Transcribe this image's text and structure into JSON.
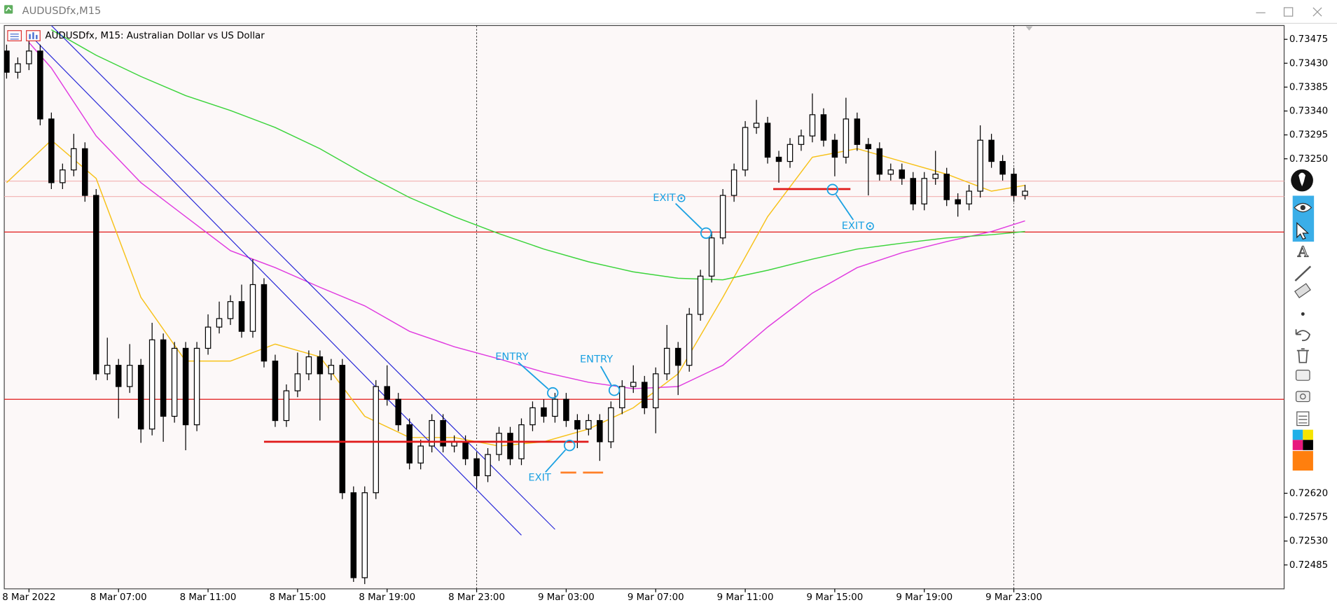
{
  "window": {
    "title": "AUDUSDfx,M15"
  },
  "chart_data": {
    "type": "candlestick",
    "title": "AUDUSDfx, M15:  Australian Dollar vs US Dollar",
    "categories": [
      null,
      null,
      "8 Mar 2022",
      null,
      null,
      null,
      null,
      null,
      null,
      null,
      "8 Mar 07:00",
      null,
      null,
      null,
      null,
      null,
      null,
      null,
      "8 Mar 11:00",
      null,
      null,
      null,
      null,
      null,
      null,
      null,
      "8 Mar 15:00",
      null,
      null,
      null,
      null,
      null,
      null,
      null,
      "8 Mar 19:00",
      null,
      null,
      null,
      null,
      null,
      null,
      null,
      "8 Mar 23:00",
      null,
      null,
      null,
      null,
      null,
      null,
      null,
      "9 Mar 03:00",
      null,
      null,
      null,
      null,
      null,
      null,
      null,
      "9 Mar 07:00",
      null,
      null,
      null,
      null,
      null,
      null,
      null,
      "9 Mar 11:00",
      null,
      null,
      null,
      null,
      null,
      null,
      null,
      "9 Mar 15:00",
      null,
      null,
      null,
      null,
      null,
      null,
      null,
      "9 Mar 19:00",
      null,
      null,
      null,
      null,
      null,
      null,
      null,
      "9 Mar 23:00",
      null
    ],
    "open": [
      0.73453,
      0.73413,
      0.73429,
      0.73453,
      0.73325,
      0.73205,
      0.73229,
      0.73269,
      0.73181,
      0.72845,
      0.72861,
      0.72821,
      0.72861,
      0.72741,
      0.72909,
      0.72765,
      0.72893,
      0.72749,
      0.72893,
      0.72933,
      0.72949,
      0.72981,
      0.72925,
      0.73013,
      0.72869,
      0.72757,
      0.72813,
      0.72845,
      0.72877,
      0.72845,
      0.72861,
      0.72621,
      0.72461,
      0.72621,
      0.72821,
      0.72797,
      0.72749,
      0.72677,
      0.72709,
      0.72757,
      0.72709,
      0.72717,
      0.72685,
      0.72653,
      0.72693,
      0.72733,
      0.72685,
      0.72749,
      0.72781,
      0.72765,
      0.72797,
      0.72757,
      0.72741,
      0.72757,
      0.72717,
      0.72781,
      0.72821,
      0.72829,
      0.72781,
      0.72845,
      0.72893,
      0.72861,
      0.72957,
      0.73029,
      0.73101,
      0.73181,
      0.73229,
      0.73309,
      0.73317,
      0.73253,
      0.73245,
      0.73277,
      0.73293,
      0.73333,
      0.73285,
      0.73253,
      0.73325,
      0.73277,
      0.73269,
      0.73221,
      0.73229,
      0.73213,
      0.73165,
      0.73213,
      0.73221,
      0.73173,
      0.73165,
      0.73189,
      0.73285,
      0.73245,
      0.73221,
      0.73181
    ],
    "high": [
      0.73465,
      0.73441,
      0.73477,
      0.73465,
      0.73337,
      0.73241,
      0.73297,
      0.73281,
      0.73193,
      0.72913,
      0.72873,
      0.72901,
      0.72873,
      0.72941,
      0.72921,
      0.72905,
      0.72905,
      0.72905,
      0.72957,
      0.72981,
      0.72993,
      0.73013,
      0.73061,
      0.73025,
      0.72881,
      0.72825,
      0.72885,
      0.72889,
      0.72889,
      0.72873,
      0.72873,
      0.72633,
      0.72633,
      0.72833,
      0.72861,
      0.72809,
      0.72761,
      0.72721,
      0.72769,
      0.72769,
      0.72729,
      0.72729,
      0.72697,
      0.72705,
      0.72745,
      0.72745,
      0.72761,
      0.72793,
      0.72797,
      0.72809,
      0.72809,
      0.72769,
      0.72769,
      0.72769,
      0.72793,
      0.72833,
      0.72861,
      0.72841,
      0.72857,
      0.72937,
      0.72905,
      0.72969,
      0.73041,
      0.73113,
      0.73193,
      0.73241,
      0.73321,
      0.73361,
      0.73329,
      0.73265,
      0.73289,
      0.73305,
      0.73373,
      0.73345,
      0.73297,
      0.73365,
      0.73337,
      0.73289,
      0.73281,
      0.73241,
      0.73241,
      0.73225,
      0.73225,
      0.73265,
      0.73233,
      0.73185,
      0.73201,
      0.73313,
      0.73297,
      0.73257,
      0.73233,
      0.73201
    ],
    "low": [
      0.73401,
      0.73401,
      0.73417,
      0.73313,
      0.73193,
      0.73193,
      0.73217,
      0.73169,
      0.72833,
      0.72833,
      0.72761,
      0.72809,
      0.72715,
      0.72729,
      0.72717,
      0.72753,
      0.72701,
      0.72737,
      0.72881,
      0.72921,
      0.72937,
      0.72913,
      0.72913,
      0.72857,
      0.72745,
      0.72745,
      0.72801,
      0.72833,
      0.72757,
      0.72833,
      0.72609,
      0.72453,
      0.72449,
      0.72609,
      0.72785,
      0.72737,
      0.72665,
      0.72665,
      0.72697,
      0.72697,
      0.72697,
      0.72673,
      0.72629,
      0.72641,
      0.72681,
      0.72673,
      0.72673,
      0.72737,
      0.72753,
      0.72753,
      0.72745,
      0.72705,
      0.72729,
      0.72681,
      0.72705,
      0.72769,
      0.72809,
      0.72769,
      0.72733,
      0.72833,
      0.72805,
      0.72849,
      0.72945,
      0.73017,
      0.73089,
      0.73169,
      0.73217,
      0.73297,
      0.73241,
      0.73205,
      0.73233,
      0.73265,
      0.73281,
      0.73273,
      0.73217,
      0.73241,
      0.73265,
      0.73181,
      0.73209,
      0.73209,
      0.73201,
      0.73153,
      0.73153,
      0.73201,
      0.73161,
      0.73141,
      0.73153,
      0.73177,
      0.73233,
      0.73209,
      0.73169,
      0.73173
    ],
    "close": [
      0.73413,
      0.73429,
      0.73453,
      0.73325,
      0.73205,
      0.73229,
      0.73269,
      0.73181,
      0.72845,
      0.72861,
      0.72821,
      0.72861,
      0.72741,
      0.72909,
      0.72765,
      0.72893,
      0.72749,
      0.72893,
      0.72933,
      0.72949,
      0.72981,
      0.72925,
      0.73013,
      0.72869,
      0.72757,
      0.72813,
      0.72845,
      0.72877,
      0.72845,
      0.72861,
      0.72621,
      0.72461,
      0.72621,
      0.72821,
      0.72797,
      0.72749,
      0.72677,
      0.72709,
      0.72757,
      0.72709,
      0.72717,
      0.72685,
      0.72653,
      0.72693,
      0.72733,
      0.72685,
      0.72749,
      0.72781,
      0.72765,
      0.72797,
      0.72757,
      0.72741,
      0.72757,
      0.72717,
      0.72781,
      0.72821,
      0.72829,
      0.72781,
      0.72845,
      0.72893,
      0.72861,
      0.72957,
      0.73029,
      0.73101,
      0.73181,
      0.73229,
      0.73309,
      0.73317,
      0.73253,
      0.73245,
      0.73277,
      0.73293,
      0.73333,
      0.73285,
      0.73253,
      0.73325,
      0.73277,
      0.73269,
      0.73221,
      0.73229,
      0.73213,
      0.73165,
      0.73213,
      0.73221,
      0.73173,
      0.73165,
      0.73189,
      0.73285,
      0.73245,
      0.73221,
      0.73181,
      0.73189
    ],
    "up_color": "#ffffff",
    "down_color": "#000000",
    "ylim": [
      0.7244,
      0.73501
    ],
    "yticks": [
      0.73475,
      {
        "value": 0.7343,
        "label": "0.73430"
      },
      0.73385,
      {
        "value": 0.7334,
        "label": "0.73340"
      },
      0.73295,
      {
        "value": 0.7325,
        "label": "0.73250"
      },
      {
        "value": 0.7262,
        "label": "0.72620"
      },
      0.72575,
      {
        "value": 0.7253,
        "label": "0.72530"
      },
      0.72485
    ],
    "grid": false,
    "separators": [
      42,
      90
    ],
    "moving_averages": [
      {
        "color": "#f7c21a",
        "x": [
          0,
          4,
          8,
          12,
          16,
          20,
          24,
          28,
          32,
          36,
          40,
          44,
          48,
          52,
          56,
          60,
          64,
          68,
          72,
          76,
          80,
          84,
          88,
          91
        ],
        "values": [
          0.73205,
          0.73285,
          0.73213,
          0.72989,
          0.72869,
          0.72869,
          0.72901,
          0.72877,
          0.72765,
          0.72725,
          0.72725,
          0.72709,
          0.72717,
          0.72741,
          0.72781,
          0.72845,
          0.72989,
          0.73141,
          0.73253,
          0.73269,
          0.73245,
          0.73221,
          0.73189,
          0.732
        ]
      },
      {
        "color": "#e03ce0",
        "x": [
          2,
          4,
          8,
          12,
          16,
          20,
          24,
          28,
          32,
          36,
          40,
          44,
          48,
          52,
          56,
          60,
          64,
          68,
          72,
          76,
          80,
          84,
          88,
          91
        ],
        "values": [
          0.73469,
          0.73421,
          0.73293,
          0.73205,
          0.73141,
          0.73077,
          0.73045,
          0.73008,
          0.72973,
          0.72925,
          0.72896,
          0.72873,
          0.72848,
          0.72829,
          0.72817,
          0.72821,
          0.72861,
          0.72933,
          0.72997,
          0.73045,
          0.73073,
          0.73094,
          0.73113,
          0.73133
        ]
      },
      {
        "color": "#3cd43c",
        "x": [
          4,
          8,
          12,
          16,
          20,
          24,
          28,
          32,
          36,
          40,
          44,
          48,
          52,
          56,
          60,
          64,
          68,
          72,
          76,
          80,
          84,
          88,
          91
        ],
        "values": [
          0.73493,
          0.73445,
          0.73405,
          0.73369,
          0.73341,
          0.73309,
          0.73269,
          0.73221,
          0.73177,
          0.73141,
          0.73109,
          0.7308,
          0.73056,
          0.73037,
          0.73025,
          0.73022,
          0.7304,
          0.73061,
          0.7308,
          0.73091,
          0.73101,
          0.73107,
          0.73113
        ]
      }
    ],
    "price_lines": [
      {
        "value": 0.73208,
        "color": "#f2b8b8"
      },
      {
        "value": 0.73179,
        "color": "#f2b8b8"
      },
      {
        "value": 0.73112,
        "color": "#e01818"
      },
      {
        "value": 0.72797,
        "color": "#e01818"
      }
    ],
    "trend_lines": [
      {
        "x": [
          2,
          46
        ],
        "y": [
          0.73485,
          0.72541
        ],
        "color": "#2b2bd8"
      },
      {
        "x": [
          4,
          49
        ],
        "y": [
          0.73501,
          0.72552
        ],
        "color": "#2b2bd8"
      }
    ],
    "segments": [
      {
        "x": [
          23,
          52
        ],
        "y": 0.72717,
        "color": "#e01818"
      },
      {
        "x": [
          68.5,
          75.4
        ],
        "y": 0.73193,
        "color": "#e01818"
      },
      {
        "x": [
          49.5,
          50.9
        ],
        "y": 0.72659,
        "color": "#ff7f27"
      },
      {
        "x": [
          51.5,
          53.3
        ],
        "y": 0.72659,
        "color": "#ff7f27"
      }
    ],
    "annotation_color": "#1ba1e2",
    "annotations": [
      {
        "text": "ENTRY",
        "x": 48.8,
        "y": 0.72809
      },
      {
        "text": "ENTRY",
        "x": 54.3,
        "y": 0.72814
      },
      {
        "text": "EXIT",
        "x": 50.3,
        "y": 0.7271
      },
      {
        "text": "EXIT",
        "x": 62.5,
        "y": 0.7311
      },
      {
        "text": "EXIT",
        "x": 73.8,
        "y": 0.73192
      }
    ]
  }
}
